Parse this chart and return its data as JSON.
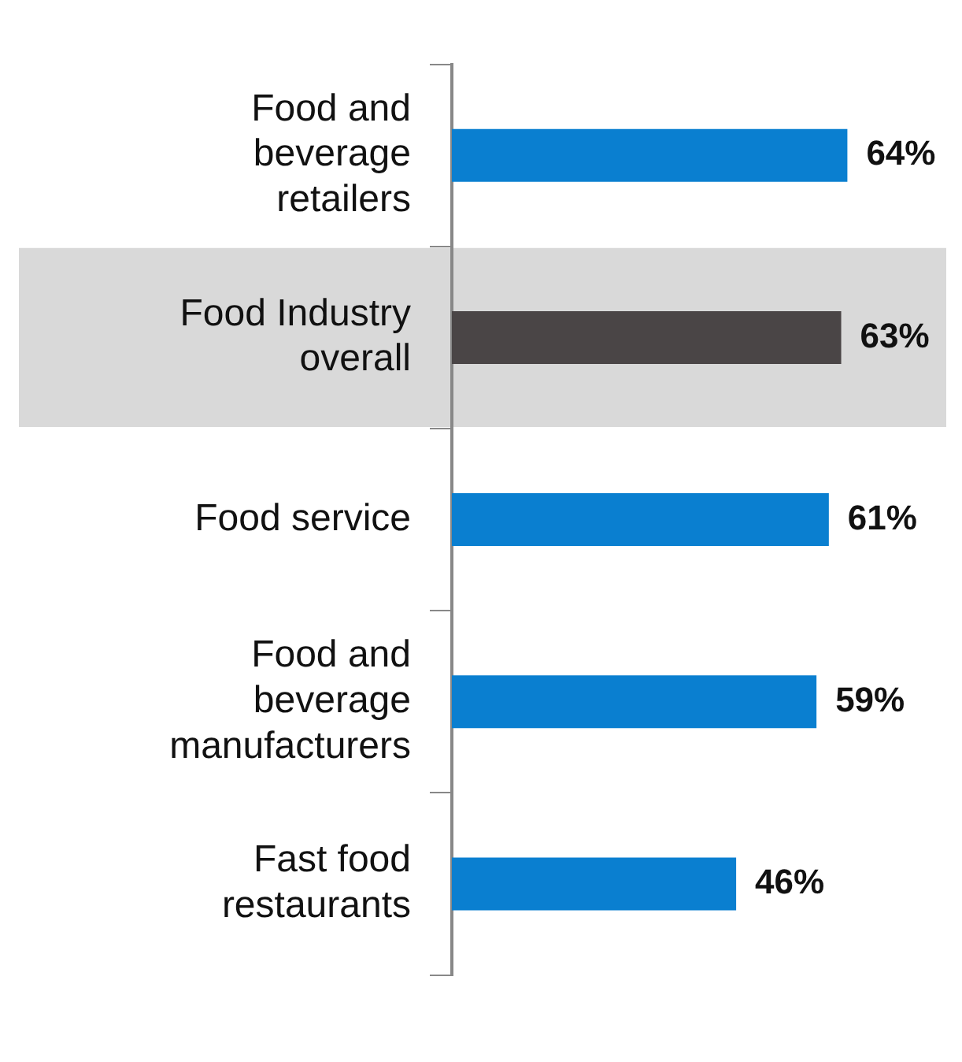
{
  "chart_data": {
    "type": "bar",
    "orientation": "horizontal",
    "categories": [
      "Food and beverage retailers",
      "Food Industry overall",
      "Food service",
      "Food and beverage manufacturers",
      "Fast food restaurants"
    ],
    "values": [
      64,
      63,
      61,
      59,
      46
    ],
    "colors": [
      "#0a7fd0",
      "#4a4546",
      "#0a7fd0",
      "#0a7fd0",
      "#0a7fd0"
    ],
    "value_labels": [
      "64%",
      "63%",
      "61%",
      "59%",
      "46%"
    ],
    "tick_labels": "y",
    "grid": false,
    "legend": false,
    "bands": [
      {
        "axis": "y",
        "from": "Food Industry overall",
        "to": "Food Industry overall",
        "color": "#d9d9d9"
      }
    ]
  }
}
